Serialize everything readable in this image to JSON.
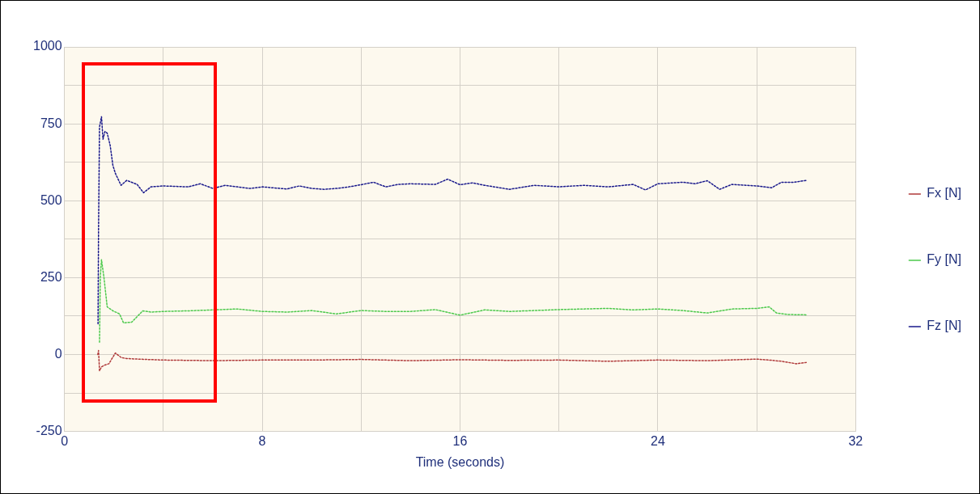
{
  "chart_data": {
    "type": "line",
    "xlabel": "Time (seconds)",
    "xlim": [
      0,
      32
    ],
    "xticks": [
      0,
      {
        "value": 4,
        "label": null
      },
      8,
      {
        "value": 12,
        "label": null
      },
      16,
      {
        "value": 20,
        "label": null
      },
      24,
      {
        "value": 28,
        "label": null
      },
      32
    ],
    "ylim": [
      -250,
      1000
    ],
    "yticks": [
      -250,
      {
        "value": -125,
        "label": null
      },
      0,
      {
        "value": 125,
        "label": null
      },
      250,
      {
        "value": 375,
        "label": null
      },
      500,
      {
        "value": 625,
        "label": null
      },
      750,
      {
        "value": 875,
        "label": null
      },
      1000
    ],
    "grid": true,
    "legend": "right",
    "line_style": "dotted",
    "series": [
      {
        "name": "Fx [N]",
        "color": "#b03a3a",
        "x": [
          1.35,
          1.38,
          1.42,
          1.5,
          1.64,
          1.8,
          2.06,
          2.3,
          2.52,
          3,
          4,
          6,
          8,
          10,
          12,
          14,
          16,
          18,
          20,
          22,
          24,
          26,
          28,
          28.5,
          29,
          29.6,
          30
        ],
        "values": [
          0,
          13,
          -53,
          -40,
          -34,
          -30,
          5,
          -10,
          -13,
          -15,
          -18,
          -20,
          -18,
          -18,
          -16,
          -20,
          -17,
          -19,
          -18,
          -22,
          -18,
          -20,
          -15,
          -18,
          -22,
          -30,
          -26
        ]
      },
      {
        "name": "Fy [N]",
        "color": "#4cc94c",
        "x": [
          1.42,
          1.45,
          1.5,
          1.6,
          1.73,
          1.96,
          2.23,
          2.39,
          2.72,
          3.17,
          3.5,
          4,
          5,
          6,
          7,
          8,
          9,
          10,
          11,
          12,
          13,
          14,
          15,
          16,
          17,
          18,
          19,
          20,
          21,
          22,
          23,
          24,
          25,
          26,
          27,
          28,
          28.5,
          28.8,
          29.3,
          30
        ],
        "values": [
          40,
          250,
          308,
          250,
          155,
          142,
          132,
          103,
          105,
          142,
          138,
          140,
          142,
          145,
          148,
          140,
          138,
          143,
          132,
          143,
          140,
          140,
          146,
          128,
          145,
          140,
          143,
          146,
          148,
          150,
          145,
          148,
          143,
          135,
          148,
          150,
          155,
          135,
          130,
          129
        ]
      },
      {
        "name": "Fz [N]",
        "color": "#1a1a8c",
        "x": [
          1.36,
          1.38,
          1.42,
          1.5,
          1.56,
          1.64,
          1.73,
          1.85,
          1.96,
          2.06,
          2.29,
          2.52,
          2.94,
          3.2,
          3.5,
          4,
          5,
          5.5,
          6,
          6.5,
          7,
          7.5,
          8,
          9,
          9.5,
          10,
          10.5,
          11,
          11.5,
          12,
          12.5,
          13,
          13.5,
          14,
          15,
          15.5,
          16,
          16.5,
          17,
          18,
          19,
          20,
          21,
          22,
          23,
          23.5,
          24,
          25,
          25.5,
          26,
          26.5,
          27,
          28,
          28.6,
          29,
          29.5,
          30
        ],
        "values": [
          100,
          400,
          740,
          773,
          700,
          725,
          720,
          680,
          615,
          589,
          550,
          566,
          553,
          526,
          545,
          548,
          545,
          555,
          540,
          550,
          545,
          540,
          545,
          538,
          548,
          540,
          537,
          540,
          545,
          552,
          560,
          545,
          553,
          555,
          553,
          570,
          552,
          558,
          550,
          537,
          550,
          545,
          550,
          545,
          553,
          535,
          555,
          560,
          555,
          565,
          537,
          553,
          548,
          542,
          560,
          560,
          566
        ]
      }
    ]
  }
}
